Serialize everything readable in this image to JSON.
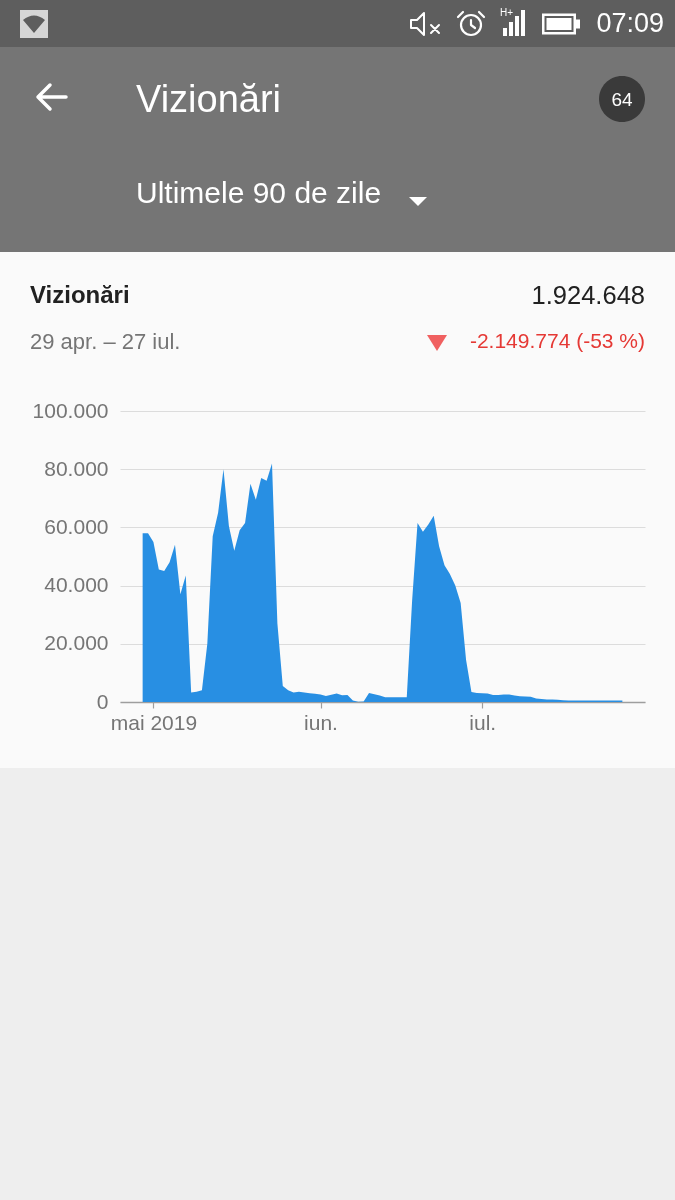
{
  "chart_data": {
    "type": "area",
    "title": "Vizionări",
    "subtitle": "Ultimele 90 de zile",
    "annotations": [
      "07:09",
      "H+",
      "64",
      "Vizionări",
      "1.924.648",
      "29 apr. – 27 iul.",
      "-2.149.774 (-53 %)"
    ],
    "categories": [
      null,
      null,
      "mai 2019",
      null,
      null,
      null,
      null,
      null,
      null,
      null,
      null,
      null,
      null,
      null,
      null,
      null,
      null,
      null,
      null,
      null,
      null,
      null,
      null,
      null,
      null,
      null,
      null,
      null,
      null,
      null,
      null,
      null,
      null,
      "iun.",
      null,
      null,
      null,
      null,
      null,
      null,
      null,
      null,
      null,
      null,
      null,
      null,
      null,
      null,
      null,
      null,
      null,
      null,
      null,
      null,
      null,
      null,
      null,
      null,
      null,
      null,
      null,
      null,
      null,
      "iul.",
      null,
      null,
      null,
      null,
      null,
      null,
      null,
      null,
      null,
      null,
      null,
      null,
      null,
      null,
      null,
      null,
      null,
      null,
      null,
      null,
      null,
      null,
      null,
      null,
      null,
      null
    ],
    "series": [
      {
        "color": "#288fe3",
        "values": [
          58000,
          58000,
          55000,
          45500,
          45000,
          48000,
          54000,
          37000,
          43500,
          3300,
          3500,
          4000,
          20000,
          57000,
          65000,
          80000,
          60500,
          52000,
          59000,
          61500,
          75000,
          69500,
          77000,
          76000,
          82000,
          27000,
          5500,
          4000,
          3300,
          3500,
          3300,
          3000,
          2800,
          2600,
          2100,
          2500,
          2900,
          2300,
          2400,
          500,
          100,
          200,
          3100,
          2700,
          2200,
          1600,
          1600,
          1600,
          1600,
          1600,
          35000,
          61500,
          58500,
          61000,
          64000,
          53500,
          47000,
          44000,
          40000,
          34000,
          14500,
          3400,
          3100,
          3000,
          2900,
          2400,
          2400,
          2600,
          2600,
          2200,
          2000,
          1900,
          1800,
          1200,
          1000,
          900,
          900,
          800,
          600,
          500,
          500,
          500,
          500,
          500,
          500,
          500,
          500,
          500,
          500,
          500
        ]
      }
    ],
    "ylim": [
      0,
      100000
    ],
    "yticks": [
      {
        "value": 0,
        "label": "0"
      },
      {
        "value": 20000,
        "label": "20.000"
      },
      {
        "value": 40000,
        "label": "40.000"
      },
      {
        "value": 60000,
        "label": "60.000"
      },
      {
        "value": 80000,
        "label": "80.000"
      },
      {
        "value": 100000,
        "label": "100.000"
      }
    ],
    "grid": "y"
  }
}
